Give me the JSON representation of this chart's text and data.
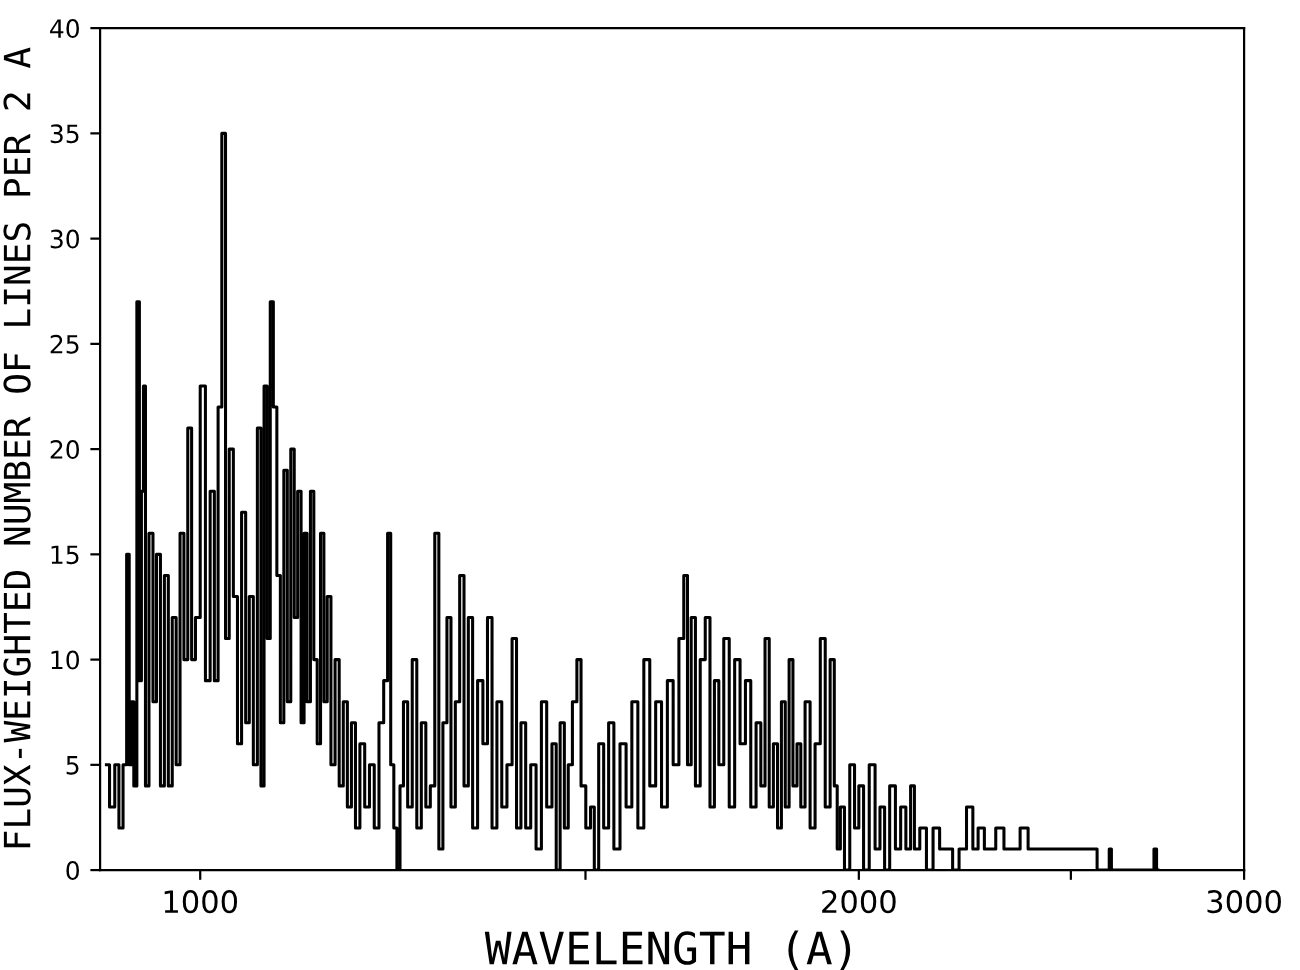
{
  "chart_data": {
    "type": "step",
    "xlabel": "WAVELENGTH (A)",
    "ylabel": "FLUX-WEIGHTED NUMBER OF LINES PER 2 A",
    "log": "x",
    "xlim": [
      900,
      3000
    ],
    "xticks": [
      1000,
      {
        "value": 1500,
        "label": null
      },
      2000,
      {
        "value": 2500,
        "label": null
      },
      3000
    ],
    "ylim": [
      0,
      40
    ],
    "yticks": [
      0,
      5,
      10,
      15,
      20,
      25,
      30,
      35,
      40
    ],
    "grid": false,
    "legend": false,
    "series": [
      {
        "color": "#000000",
        "x": [
          906,
          912,
          916,
          920,
          924,
          927,
          929,
          931,
          934,
          937,
          939,
          941,
          943,
          945,
          950,
          953,
          957,
          961,
          965,
          969,
          973,
          977,
          981,
          985,
          989,
          993,
          997,
          1003,
          1008,
          1013,
          1017,
          1021,
          1025,
          1029,
          1033,
          1038,
          1042,
          1047,
          1051,
          1055,
          1060,
          1064,
          1068,
          1071,
          1075,
          1078,
          1082,
          1086,
          1090,
          1094,
          1098,
          1102,
          1106,
          1110,
          1114,
          1117,
          1121,
          1125,
          1129,
          1133,
          1137,
          1141,
          1145,
          1150,
          1155,
          1160,
          1165,
          1170,
          1175,
          1180,
          1186,
          1192,
          1198,
          1204,
          1210,
          1216,
          1220,
          1224,
          1228,
          1232,
          1236,
          1241,
          1247,
          1253,
          1259,
          1265,
          1271,
          1277,
          1283,
          1288,
          1294,
          1299,
          1305,
          1311,
          1317,
          1323,
          1329,
          1335,
          1343,
          1350,
          1356,
          1363,
          1370,
          1377,
          1385,
          1392,
          1398,
          1405,
          1412,
          1420,
          1428,
          1436,
          1444,
          1452,
          1457,
          1464,
          1470,
          1476,
          1483,
          1490,
          1496,
          1505,
          1511,
          1517,
          1525,
          1533,
          1541,
          1550,
          1561,
          1570,
          1580,
          1590,
          1600,
          1610,
          1620,
          1630,
          1640,
          1650,
          1660,
          1667,
          1673,
          1680,
          1688,
          1697,
          1706,
          1714,
          1722,
          1730,
          1740,
          1750,
          1760,
          1770,
          1780,
          1790,
          1800,
          1808,
          1816,
          1824,
          1832,
          1840,
          1847,
          1855,
          1862,
          1870,
          1878,
          1885,
          1895,
          1905,
          1915,
          1926,
          1935,
          1946,
          1952,
          1958,
          1965,
          1975,
          1987,
          1995,
          2005,
          2015,
          2029,
          2040,
          2050,
          2060,
          2072,
          2085,
          2095,
          2108,
          2116,
          2125,
          2140,
          2155,
          2170,
          2185,
          2200,
          2215,
          2230,
          2250,
          2260,
          2275,
          2290,
          2300,
          2320,
          2340,
          2360,
          2380,
          2400,
          2420,
          2440,
          2480,
          2560,
          2580,
          2600,
          2606,
          2612,
          2725,
          2732,
          2740
        ],
        "values": [
          5,
          3,
          5,
          2,
          5,
          15,
          5,
          8,
          4,
          27,
          9,
          18,
          23,
          4,
          16,
          8,
          15,
          4,
          14,
          4,
          12,
          5,
          16,
          10,
          21,
          10,
          12,
          23,
          9,
          18,
          9,
          22,
          35,
          11,
          20,
          13,
          6,
          17,
          7,
          13,
          5,
          21,
          4,
          23,
          11,
          27,
          22,
          14,
          7,
          19,
          8,
          20,
          12,
          18,
          7,
          16,
          8,
          18,
          10,
          6,
          16,
          8,
          13,
          5,
          10,
          4,
          8,
          3,
          7,
          2,
          6,
          3,
          5,
          2,
          7,
          9,
          16,
          5,
          2,
          0,
          4,
          8,
          3,
          10,
          2,
          7,
          3,
          4,
          16,
          1,
          7,
          12,
          3,
          8,
          14,
          4,
          12,
          2,
          9,
          6,
          12,
          2,
          8,
          3,
          5,
          11,
          2,
          7,
          2,
          5,
          1,
          8,
          3,
          6,
          0,
          7,
          2,
          5,
          8,
          10,
          4,
          2,
          3,
          0,
          6,
          2,
          7,
          1,
          6,
          3,
          8,
          2,
          10,
          4,
          8,
          3,
          9,
          5,
          11,
          14,
          5,
          12,
          4,
          10,
          12,
          3,
          9,
          5,
          11,
          3,
          10,
          6,
          9,
          3,
          7,
          4,
          11,
          3,
          6,
          2,
          8,
          3,
          10,
          4,
          6,
          3,
          8,
          2,
          6,
          11,
          3,
          10,
          4,
          1,
          3,
          0,
          5,
          2,
          4,
          0,
          5,
          1,
          3,
          0,
          4,
          1,
          3,
          1,
          4,
          1,
          2,
          0,
          2,
          1,
          1,
          0,
          1,
          3,
          1,
          2,
          1,
          1,
          2,
          1,
          1,
          2,
          1,
          1,
          1,
          1,
          1,
          0,
          0,
          1,
          0,
          0,
          1,
          0
        ]
      }
    ]
  }
}
